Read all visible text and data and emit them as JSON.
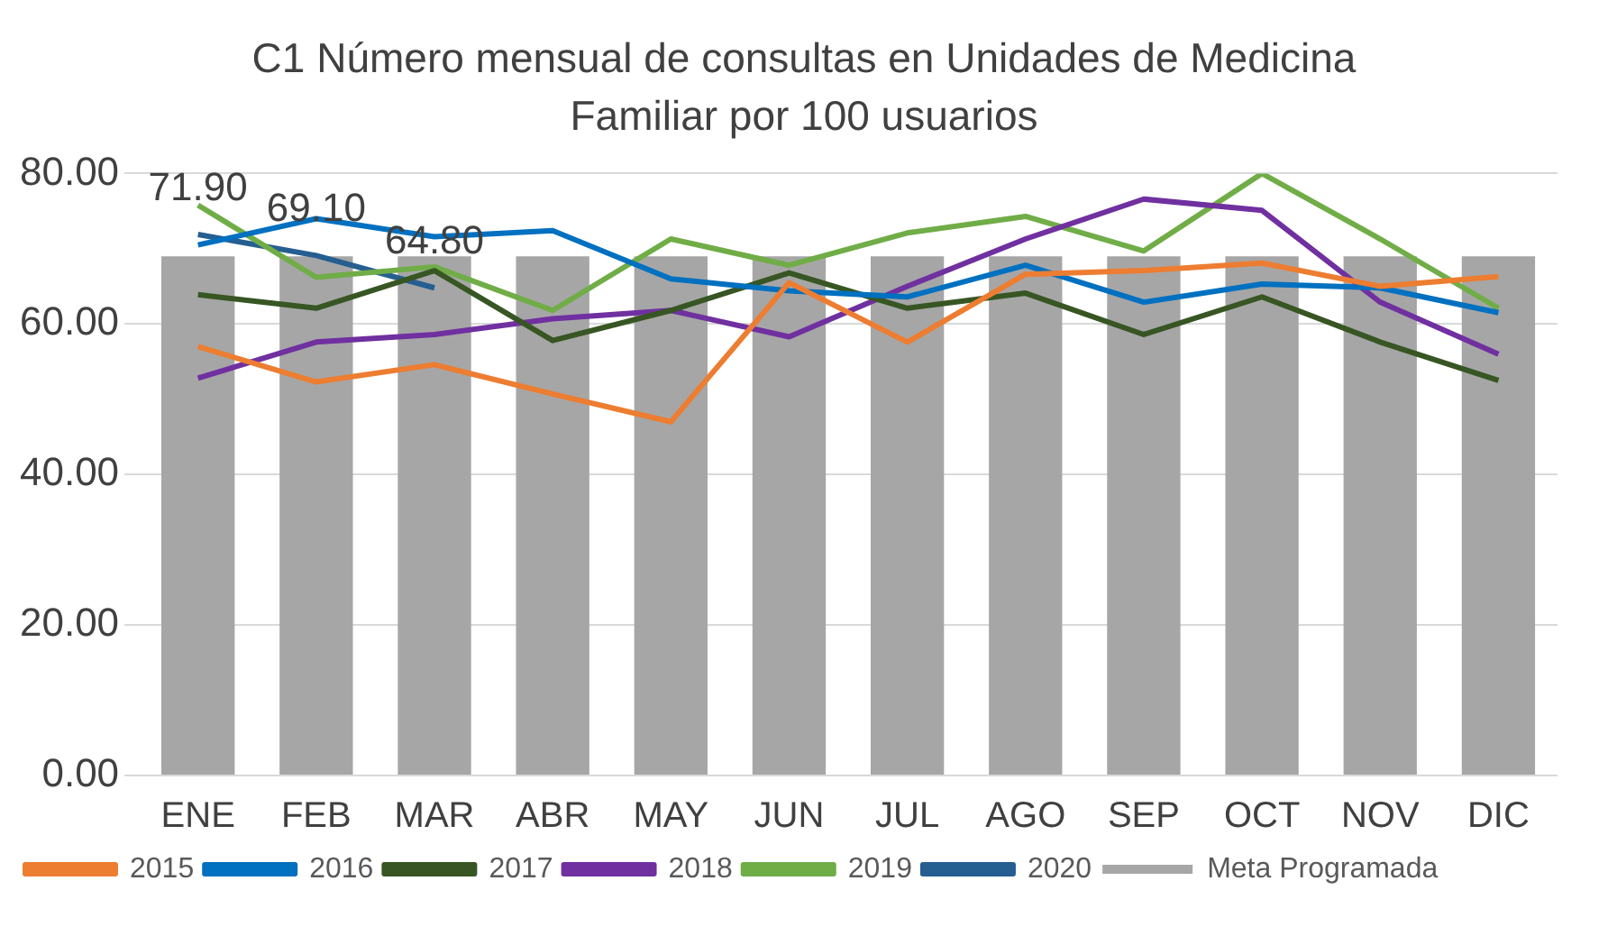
{
  "chart_data": {
    "type": "bar",
    "title": "C1 Número  mensual de consultas en Unidades de Medicina Familiar por 100 usuarios",
    "categories": [
      "ENE",
      "FEB",
      "MAR",
      "ABR",
      "MAY",
      "JUN",
      "JUL",
      "AGO",
      "SEP",
      "OCT",
      "NOV",
      "DIC"
    ],
    "series": [
      {
        "name": "Meta Programada",
        "color": "#a6a6a6",
        "values": [
          69,
          69,
          69,
          69,
          69,
          69,
          69,
          69,
          69,
          69,
          69,
          69
        ]
      },
      {
        "name": "2015",
        "type": "line",
        "color": "#ed7d31",
        "values": [
          57.0,
          52.3,
          54.6,
          50.7,
          47.0,
          65.5,
          57.6,
          66.6,
          67.1,
          68.1,
          65.0,
          66.3
        ]
      },
      {
        "name": "2016",
        "type": "line",
        "color": "#0070c0",
        "values": [
          70.5,
          74.0,
          71.6,
          72.4,
          66.0,
          64.4,
          63.6,
          67.8,
          62.9,
          65.3,
          64.8,
          61.5
        ]
      },
      {
        "name": "2017",
        "type": "line",
        "color": "#375623",
        "values": [
          63.9,
          62.1,
          67.1,
          57.8,
          61.8,
          66.8,
          62.1,
          64.1,
          58.6,
          63.6,
          57.6,
          52.5
        ]
      },
      {
        "name": "2018",
        "type": "line",
        "color": "#7030a0",
        "values": [
          52.8,
          57.6,
          58.6,
          60.7,
          61.8,
          58.3,
          65.0,
          71.3,
          76.6,
          75.1,
          62.9,
          56.0
        ]
      },
      {
        "name": "2019",
        "type": "line",
        "color": "#70ad47",
        "values": [
          75.8,
          66.2,
          67.6,
          61.8,
          71.3,
          67.8,
          72.1,
          74.3,
          69.7,
          80,
          71.3,
          62.1
        ]
      },
      {
        "name": "2020",
        "type": "line",
        "color": "#255e91",
        "values": [
          71.9,
          69.1,
          64.8,
          null,
          null,
          null,
          null,
          null,
          null,
          null,
          null,
          null
        ],
        "value_labels": [
          "71.90",
          "69.10",
          "64.80",
          null,
          null,
          null,
          null,
          null,
          null,
          null,
          null,
          null
        ]
      }
    ],
    "ylim": [
      0,
      80
    ],
    "yticks": [
      {
        "value": 0,
        "label": "0.00"
      },
      {
        "value": 20,
        "label": "20.00"
      },
      {
        "value": 40,
        "label": "40.00"
      },
      {
        "value": 60,
        "label": "60.00"
      },
      {
        "value": 80,
        "label": "80.00"
      }
    ],
    "grid": "y",
    "legend": "bottom",
    "marker": "none"
  }
}
